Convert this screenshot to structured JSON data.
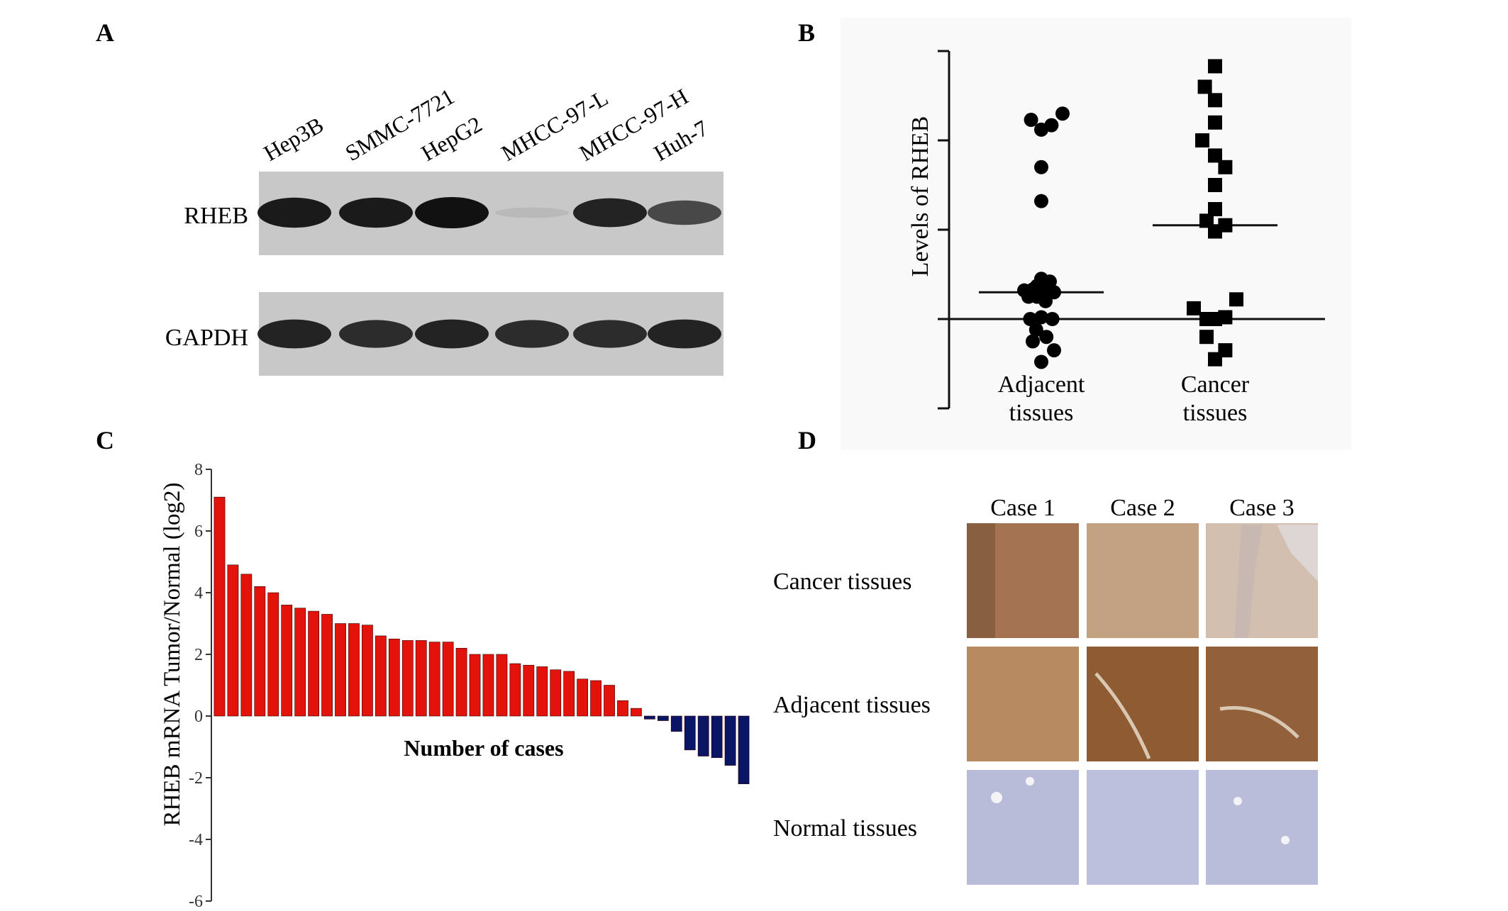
{
  "panels": {
    "a": "A",
    "b": "B",
    "c": "C",
    "d": "D"
  },
  "panel_a": {
    "cell_lines": [
      "Hep3B",
      "SMMC-7721",
      "HepG2",
      "MHCC-97-L",
      "MHCC-97-H",
      "Huh-7"
    ],
    "proteins": [
      "RHEB",
      "GAPDH"
    ],
    "band_intensity": {
      "RHEB": [
        0.95,
        0.95,
        1.0,
        0.08,
        0.9,
        0.7
      ],
      "GAPDH": [
        0.9,
        0.85,
        0.9,
        0.85,
        0.85,
        0.9
      ]
    }
  },
  "panel_d": {
    "columns": [
      "Case 1",
      "Case 2",
      "Case 3"
    ],
    "rows": [
      "Cancer tissues",
      "Adjacent tissues",
      "Normal tissues"
    ]
  },
  "chart_data": [
    {
      "panel": "B",
      "type": "scatter",
      "ylabel": "Levels of RHEB",
      "categories": [
        "Adjacent\ntissues",
        "Cancer\ntissues"
      ],
      "category_lines": [
        [
          "Adjacent",
          "tissues"
        ],
        [
          "Cancer",
          "tissues"
        ]
      ],
      "ylim": [
        -1.0,
        3.0
      ],
      "yticks": [
        -1.0,
        0.0,
        1.0,
        2.0,
        3.0
      ],
      "series": [
        {
          "marker": "circle",
          "median": 0.3,
          "points": [
            {
              "dx": -0.12,
              "y": 2.23
            },
            {
              "dx": 0.0,
              "y": 2.12
            },
            {
              "dx": 0.12,
              "y": 2.17
            },
            {
              "dx": 0.25,
              "y": 2.3
            },
            {
              "dx": 0.0,
              "y": 1.7
            },
            {
              "dx": 0.0,
              "y": 1.32
            },
            {
              "dx": -0.1,
              "y": 0.33
            },
            {
              "dx": 0.0,
              "y": 0.45
            },
            {
              "dx": 0.1,
              "y": 0.42
            },
            {
              "dx": -0.05,
              "y": 0.37
            },
            {
              "dx": 0.05,
              "y": 0.3
            },
            {
              "dx": -0.15,
              "y": 0.25
            },
            {
              "dx": -0.05,
              "y": 0.25
            },
            {
              "dx": 0.05,
              "y": 0.2
            },
            {
              "dx": 0.15,
              "y": 0.3
            },
            {
              "dx": -0.2,
              "y": 0.32
            },
            {
              "dx": -0.13,
              "y": 0.0
            },
            {
              "dx": 0.0,
              "y": 0.02
            },
            {
              "dx": 0.13,
              "y": 0.0
            },
            {
              "dx": -0.06,
              "y": -0.12
            },
            {
              "dx": 0.06,
              "y": -0.2
            },
            {
              "dx": 0.15,
              "y": -0.35
            },
            {
              "dx": -0.1,
              "y": -0.25
            },
            {
              "dx": 0.0,
              "y": -0.48
            }
          ]
        },
        {
          "marker": "square",
          "median": 1.05,
          "points": [
            {
              "dx": 0.0,
              "y": 2.83
            },
            {
              "dx": -0.12,
              "y": 2.6
            },
            {
              "dx": 0.0,
              "y": 2.45
            },
            {
              "dx": 0.0,
              "y": 2.2
            },
            {
              "dx": -0.15,
              "y": 2.0
            },
            {
              "dx": 0.0,
              "y": 1.83
            },
            {
              "dx": 0.12,
              "y": 1.7
            },
            {
              "dx": 0.0,
              "y": 1.5
            },
            {
              "dx": 0.0,
              "y": 1.23
            },
            {
              "dx": -0.1,
              "y": 1.1
            },
            {
              "dx": 0.12,
              "y": 1.05
            },
            {
              "dx": 0.0,
              "y": 0.98
            },
            {
              "dx": 0.25,
              "y": 0.22
            },
            {
              "dx": -0.25,
              "y": 0.12
            },
            {
              "dx": -0.1,
              "y": 0.0
            },
            {
              "dx": 0.0,
              "y": 0.0
            },
            {
              "dx": 0.12,
              "y": 0.02
            },
            {
              "dx": -0.1,
              "y": -0.2
            },
            {
              "dx": 0.12,
              "y": -0.35
            },
            {
              "dx": 0.0,
              "y": -0.45
            }
          ]
        }
      ]
    },
    {
      "panel": "C",
      "type": "bar",
      "ylabel": "RHEB mRNA Tumor/Normal (log2)",
      "xlabel": "Number of cases",
      "ylim": [
        -6,
        8
      ],
      "yticks": [
        -6,
        -4,
        -2,
        0,
        2,
        4,
        6,
        8
      ],
      "colors": {
        "positive": "#e3120b",
        "negative": "#0a1566"
      },
      "values": [
        7.1,
        4.9,
        4.6,
        4.2,
        4.0,
        3.6,
        3.5,
        3.4,
        3.3,
        3.0,
        3.0,
        2.95,
        2.6,
        2.5,
        2.45,
        2.45,
        2.4,
        2.4,
        2.2,
        2.0,
        2.0,
        2.0,
        1.7,
        1.65,
        1.6,
        1.5,
        1.45,
        1.2,
        1.15,
        1.0,
        0.5,
        0.25,
        -0.1,
        -0.15,
        -0.5,
        -1.1,
        -1.3,
        -1.35,
        -1.6,
        -2.2
      ]
    }
  ]
}
